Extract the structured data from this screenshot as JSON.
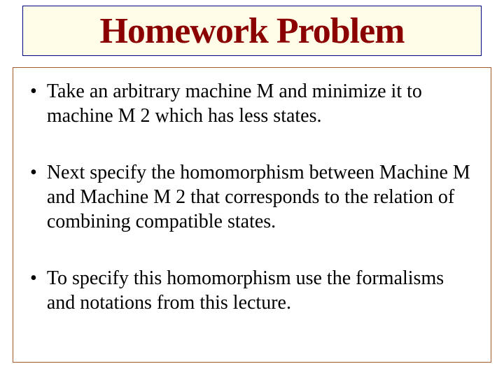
{
  "slide": {
    "title": "Homework Problem",
    "title_box": {
      "background_color": "#fffde8",
      "border_color": "#000080",
      "text_color": "#8b0000",
      "font_size": 52,
      "font_weight": "bold"
    },
    "content_box": {
      "border_color": "#a05a2c",
      "background_color": "#ffffff"
    },
    "bullets": [
      {
        "text": "Take an arbitrary machine M and minimize it to machine M 2 which has less states."
      },
      {
        "text": "Next specify the homomorphism between Machine M and Machine M 2 that corresponds to the relation of combining compatible states."
      },
      {
        "text": "To specify this homomorphism use the formalisms and notations from this lecture."
      }
    ],
    "bullet_style": {
      "marker": "•",
      "font_size": 28,
      "text_color": "#000000",
      "line_height": 1.25
    },
    "background_color": "#ffffff"
  }
}
